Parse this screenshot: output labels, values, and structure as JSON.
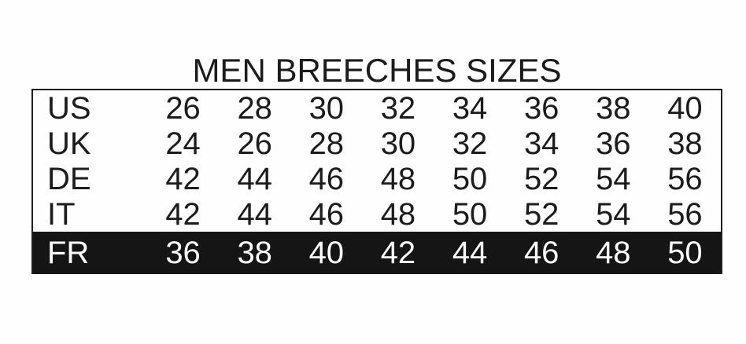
{
  "title": "MEN BREECHES SIZES",
  "chart_data": {
    "type": "table",
    "title": "MEN BREECHES SIZES",
    "columns": [
      "region",
      "size1",
      "size2",
      "size3",
      "size4",
      "size5",
      "size6",
      "size7",
      "size8"
    ],
    "rows": [
      {
        "label": "US",
        "values": [
          "26",
          "28",
          "30",
          "32",
          "34",
          "36",
          "38",
          "40"
        ],
        "highlighted": false
      },
      {
        "label": "UK",
        "values": [
          "24",
          "26",
          "28",
          "30",
          "32",
          "34",
          "36",
          "38"
        ],
        "highlighted": false
      },
      {
        "label": "DE",
        "values": [
          "42",
          "44",
          "46",
          "48",
          "50",
          "52",
          "54",
          "56"
        ],
        "highlighted": false
      },
      {
        "label": "IT",
        "values": [
          "42",
          "44",
          "46",
          "48",
          "50",
          "52",
          "54",
          "56"
        ],
        "highlighted": false
      },
      {
        "label": "FR",
        "values": [
          "36",
          "38",
          "40",
          "42",
          "44",
          "46",
          "48",
          "50"
        ],
        "highlighted": true
      }
    ],
    "highlight_row": "FR",
    "layout": {
      "grid": false,
      "legend": "none"
    },
    "colors": {
      "background": "#fefefe",
      "text": "#1c1c1c",
      "border": "#1d1d1d",
      "highlight_bg": "#151515",
      "highlight_text": "#fdfdfd"
    }
  }
}
